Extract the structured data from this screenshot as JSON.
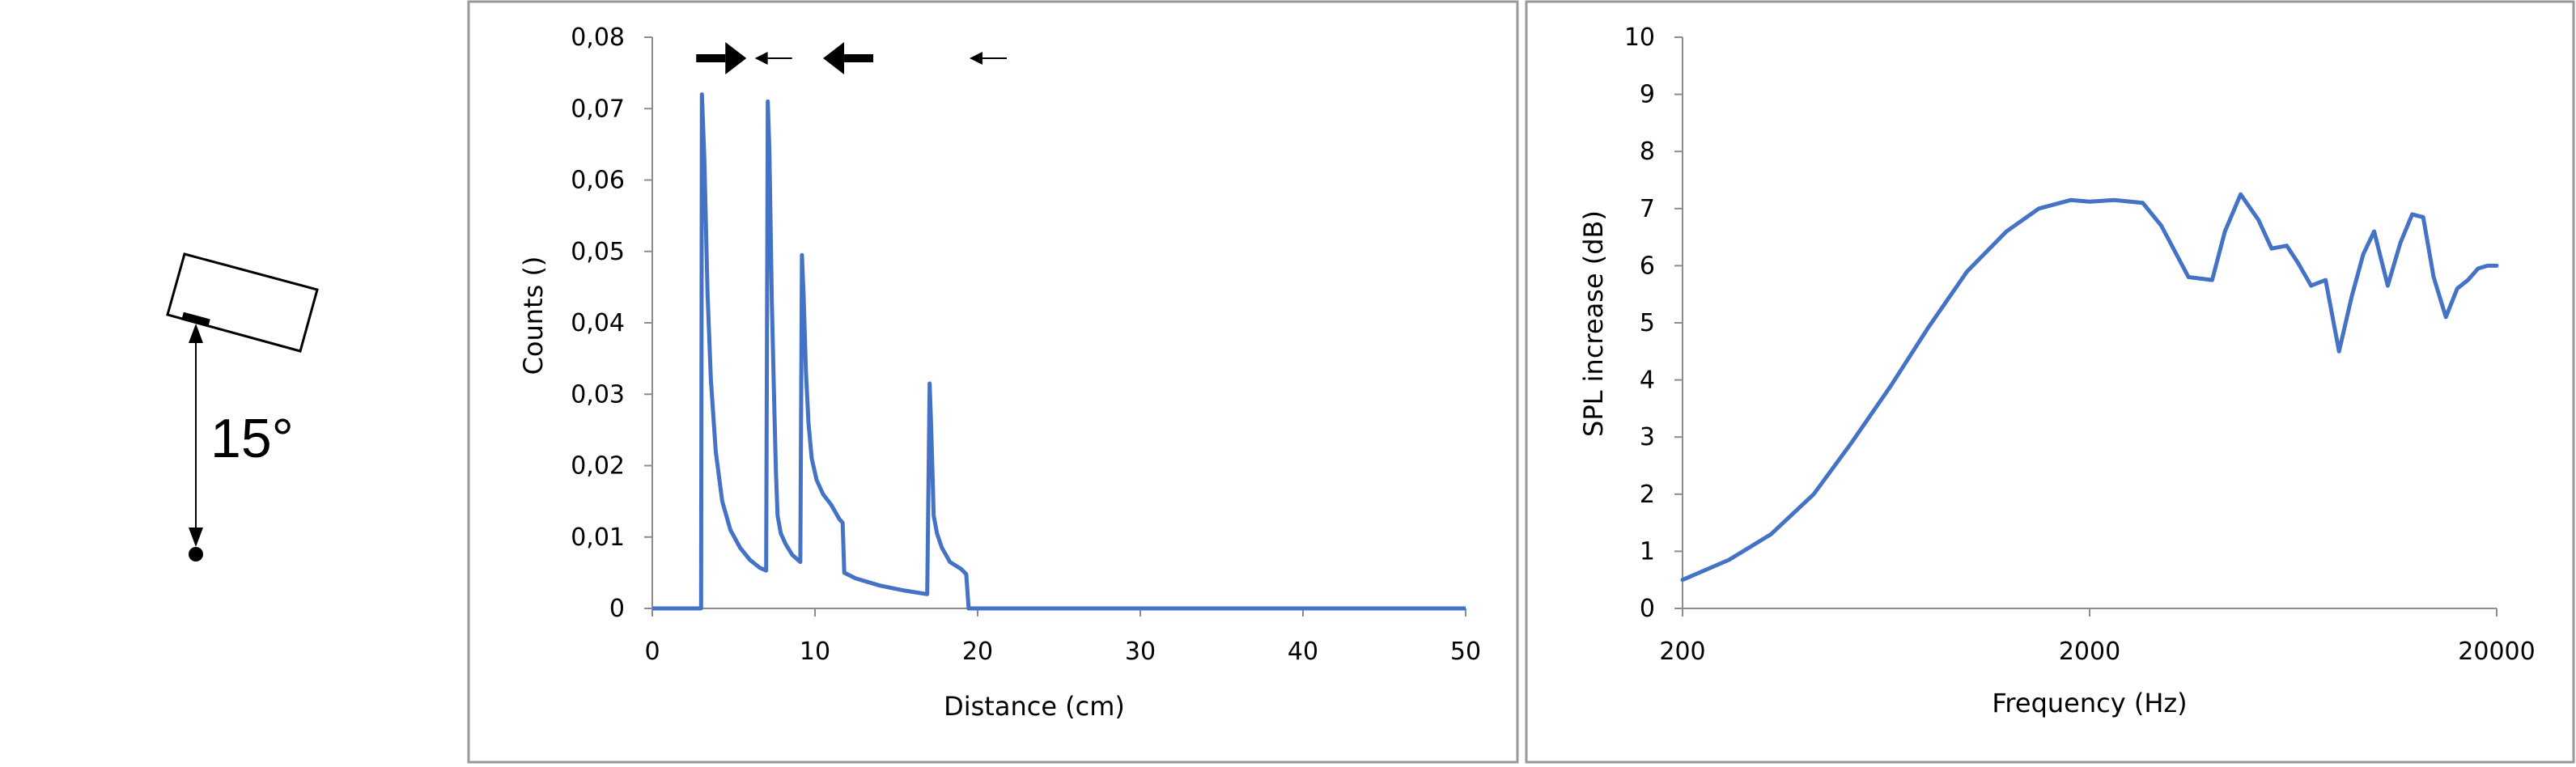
{
  "diagram": {
    "angle_label": "15°"
  },
  "chart_data": [
    {
      "type": "line",
      "xlabel": "Distance (cm)",
      "ylabel": "Counts ()",
      "xlim": [
        0,
        50
      ],
      "ylim": [
        0,
        0.08
      ],
      "x_ticks": [
        0,
        10,
        20,
        30,
        40,
        50
      ],
      "x_tick_labels": [
        "0",
        "10",
        "20",
        "30",
        "40",
        "50"
      ],
      "y_ticks": [
        0,
        0.01,
        0.02,
        0.03,
        0.04,
        0.05,
        0.06,
        0.07,
        0.08
      ],
      "y_tick_labels": [
        "0",
        "0,01",
        "0,02",
        "0,03",
        "0,04",
        "0,05",
        "0,06",
        "0,07",
        "0,08"
      ],
      "grid": false,
      "color": "#4472C4",
      "series": [
        {
          "x": [
            0,
            3.0,
            3.05,
            3.2,
            3.4,
            3.6,
            3.9,
            4.3,
            4.8,
            5.4,
            6.0,
            6.6,
            7.0,
            7.1,
            7.2,
            7.35,
            7.5,
            7.6,
            7.7,
            7.9,
            8.2,
            8.6,
            9.1,
            9.2,
            9.3,
            9.45,
            9.6,
            9.8,
            10.1,
            10.5,
            11.0,
            11.5,
            11.7,
            11.8,
            12.5,
            14.0,
            15.5,
            16.9,
            17.05,
            17.15,
            17.3,
            17.5,
            17.8,
            18.3,
            19.0,
            19.3,
            19.45,
            20,
            30,
            40,
            50
          ],
          "y": [
            0,
            0,
            0.072,
            0.063,
            0.044,
            0.032,
            0.022,
            0.015,
            0.011,
            0.0085,
            0.0068,
            0.0057,
            0.0053,
            0.071,
            0.064,
            0.043,
            0.028,
            0.019,
            0.013,
            0.0105,
            0.009,
            0.0075,
            0.0065,
            0.0495,
            0.044,
            0.033,
            0.026,
            0.021,
            0.018,
            0.016,
            0.0145,
            0.0125,
            0.012,
            0.005,
            0.0042,
            0.0032,
            0.0025,
            0.002,
            0.0315,
            0.025,
            0.013,
            0.0105,
            0.0085,
            0.0065,
            0.0055,
            0.0048,
            0,
            0,
            0,
            0,
            0
          ]
        }
      ],
      "annotations": [
        {
          "x": 2.7,
          "direction": "right",
          "weight": "bold"
        },
        {
          "x": 6.3,
          "direction": "left",
          "weight": "thin"
        },
        {
          "x": 10.5,
          "direction": "left",
          "weight": "bold"
        },
        {
          "x": 19.5,
          "direction": "left",
          "weight": "thin"
        }
      ]
    },
    {
      "type": "line",
      "xlabel": "Frequency (Hz)",
      "ylabel": "SPL increase (dB)",
      "x_scale": "log",
      "xlim": [
        200,
        20000
      ],
      "ylim": [
        0,
        10
      ],
      "x_ticks": [
        200,
        2000,
        20000
      ],
      "x_tick_labels": [
        "200",
        "2000",
        "20000"
      ],
      "y_ticks": [
        0,
        1,
        2,
        3,
        4,
        5,
        6,
        7,
        8,
        9,
        10
      ],
      "y_tick_labels": [
        "0",
        "1",
        "2",
        "3",
        "4",
        "5",
        "6",
        "7",
        "8",
        "9",
        "10"
      ],
      "grid": false,
      "color": "#4472C4",
      "series": [
        {
          "x": [
            200,
            260,
            330,
            420,
            520,
            650,
            800,
            1000,
            1250,
            1500,
            1800,
            2000,
            2300,
            2700,
            3000,
            3500,
            4000,
            4300,
            4700,
            5200,
            5600,
            6100,
            6500,
            7000,
            7600,
            8200,
            8800,
            9400,
            10000,
            10800,
            11600,
            12400,
            13200,
            14000,
            15000,
            16000,
            17000,
            18000,
            19000,
            20000
          ],
          "y": [
            0.5,
            0.85,
            1.3,
            2.0,
            2.9,
            3.9,
            4.9,
            5.9,
            6.6,
            7.0,
            7.15,
            7.12,
            7.15,
            7.1,
            6.7,
            5.8,
            5.75,
            6.6,
            7.25,
            6.8,
            6.3,
            6.35,
            6.05,
            5.65,
            5.75,
            4.5,
            5.45,
            6.2,
            6.6,
            5.65,
            6.4,
            6.9,
            6.85,
            5.8,
            5.1,
            5.6,
            5.75,
            5.95,
            6.0,
            6.0
          ]
        }
      ]
    }
  ]
}
